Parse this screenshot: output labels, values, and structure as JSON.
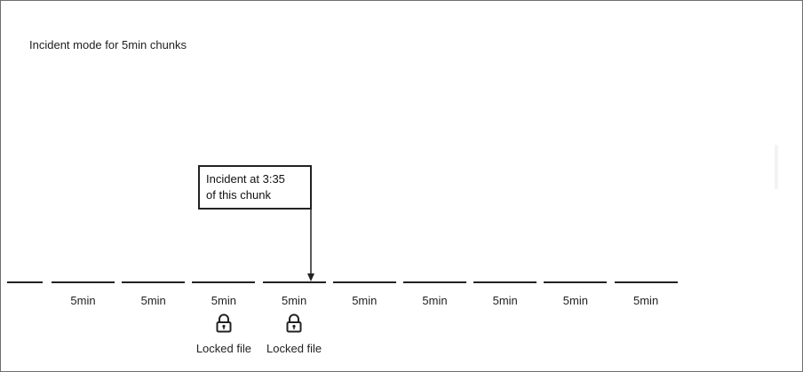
{
  "diagram": {
    "title": "Incident mode for 5min chunks",
    "callout": {
      "line1": "Incident at 3:35",
      "line2": "of this chunk"
    },
    "chunks": [
      {
        "label": "5min",
        "locked": false,
        "locked_label": ""
      },
      {
        "label": "5min",
        "locked": false,
        "locked_label": ""
      },
      {
        "label": "5min",
        "locked": true,
        "locked_label": "Locked file"
      },
      {
        "label": "5min",
        "locked": true,
        "locked_label": "Locked file"
      },
      {
        "label": "5min",
        "locked": false,
        "locked_label": ""
      },
      {
        "label": "5min",
        "locked": false,
        "locked_label": ""
      },
      {
        "label": "5min",
        "locked": false,
        "locked_label": ""
      },
      {
        "label": "5min",
        "locked": false,
        "locked_label": ""
      },
      {
        "label": "5min",
        "locked": false,
        "locked_label": ""
      }
    ],
    "icons": {
      "lock": "padlock-icon",
      "arrow": "arrow-down-icon"
    },
    "colors": {
      "line": "#222222",
      "border": "#6e6e6e"
    }
  }
}
